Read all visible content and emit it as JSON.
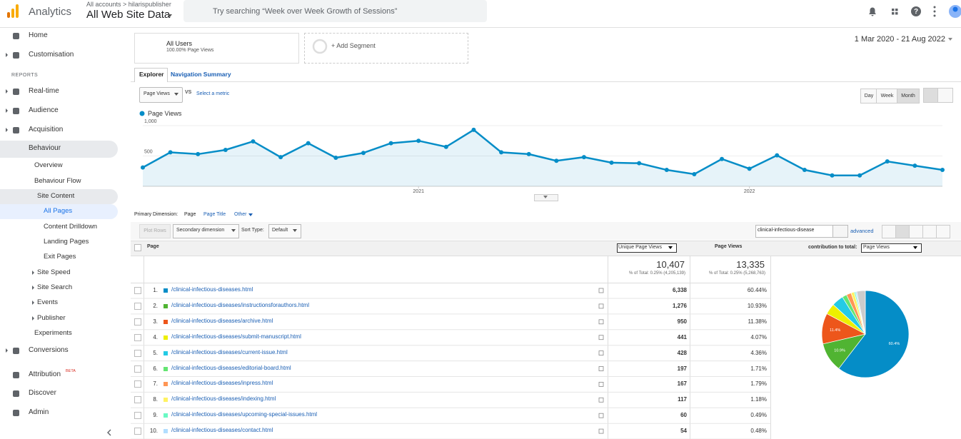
{
  "header": {
    "app": "Analytics",
    "account_path": "All accounts > hilarispublisher",
    "property": "All Web Site Data",
    "search_placeholder": "Try searching “Week over Week Growth of Sessions”"
  },
  "sidebar": {
    "reports_heading": "REPORTS",
    "attribution_badge": "BETA",
    "items": [
      "Home",
      "Customisation",
      "Real-time",
      "Audience",
      "Acquisition",
      "Behaviour",
      "Overview",
      "Behaviour Flow",
      "Site Content",
      "All Pages",
      "Content Drilldown",
      "Landing Pages",
      "Exit Pages",
      "Site Speed",
      "Site Search",
      "Events",
      "Publisher",
      "Experiments",
      "Conversions",
      "Attribution",
      "Discover",
      "Admin"
    ]
  },
  "segments": {
    "all_users": "All Users",
    "all_users_sub": "100.00% Page Views",
    "add": "+ Add Segment"
  },
  "date_range": "1 Mar 2020 - 21 Aug 2022",
  "tabs": [
    "Explorer",
    "Navigation Summary"
  ],
  "metric": {
    "selected": "Page Views",
    "vs": "VS",
    "select": "Select a metric"
  },
  "granularity": [
    "Day",
    "Week",
    "Month"
  ],
  "chart_data": [
    {
      "type": "line",
      "series": [
        {
          "name": "Page Views",
          "color": "#058dc7",
          "values": [
            310,
            560,
            530,
            600,
            740,
            480,
            710,
            470,
            550,
            710,
            750,
            650,
            930,
            560,
            530,
            420,
            480,
            390,
            380,
            270,
            200,
            450,
            290,
            510,
            270,
            180,
            180,
            410,
            340,
            270
          ]
        }
      ],
      "x": [
        null,
        null,
        null,
        null,
        null,
        null,
        null,
        null,
        null,
        null,
        "2021",
        null,
        null,
        null,
        null,
        null,
        null,
        null,
        null,
        null,
        null,
        null,
        "2022",
        null,
        null,
        null,
        null,
        null,
        null,
        null
      ],
      "ylim": [
        0,
        1070
      ],
      "yticks": [
        500,
        {
          "value": 1000,
          "label": "1,000"
        }
      ],
      "grid": true,
      "legend": "top-left"
    },
    {
      "type": "pie",
      "values": [
        60.44,
        10.93,
        11.38,
        4.07,
        4.36,
        1.71,
        1.79,
        1.18,
        0.49,
        0.48,
        3.17
      ],
      "value_labels": [
        "60.4%",
        "10.9%",
        "11.4%",
        null,
        null,
        null,
        null,
        null,
        null,
        null,
        null
      ],
      "colors": [
        "#058dc7",
        "#50b432",
        "#ed561b",
        "#edef00",
        "#24cbe5",
        "#64e572",
        "#ff9655",
        "#fff263",
        "#6af9c4",
        "#b2deff",
        "#cccccc"
      ]
    }
  ],
  "dimensions": {
    "label": "Primary Dimension:",
    "options": [
      "Page",
      "Page Title",
      "Other"
    ]
  },
  "toolbar": {
    "plot_rows": "Plot Rows",
    "secondary": "Secondary dimension",
    "sort_label": "Sort Type:",
    "sort": "Default",
    "filter": "clinical-infectious-disease",
    "advanced": "advanced"
  },
  "table": {
    "headers": [
      "Page",
      "Unique Page Views",
      "Page Views",
      "contribution to total:"
    ],
    "contribution_select": "Page Views",
    "totals": {
      "unique_page_views": "10,407",
      "unique_page_views_note": "% of Total: 0.25% (4,205,139)",
      "page_views": "13,335",
      "page_views_note": "% of Total: 0.25% (5,268,763)"
    },
    "rows": [
      {
        "rank": "1.",
        "page": "/clinical-infectious-diseases.html",
        "unique_page_views": "6,338",
        "page_views": "60.44%"
      },
      {
        "rank": "2.",
        "page": "/clinical-infectious-diseases/instructionsforauthors.html",
        "unique_page_views": "1,276",
        "page_views": "10.93%"
      },
      {
        "rank": "3.",
        "page": "/clinical-infectious-diseases/archive.html",
        "unique_page_views": "950",
        "page_views": "11.38%"
      },
      {
        "rank": "4.",
        "page": "/clinical-infectious-diseases/submit-manuscript.html",
        "unique_page_views": "441",
        "page_views": "4.07%"
      },
      {
        "rank": "5.",
        "page": "/clinical-infectious-diseases/current-issue.html",
        "unique_page_views": "428",
        "page_views": "4.36%"
      },
      {
        "rank": "6.",
        "page": "/clinical-infectious-diseases/editorial-board.html",
        "unique_page_views": "197",
        "page_views": "1.71%"
      },
      {
        "rank": "7.",
        "page": "/clinical-infectious-diseases/inpress.html",
        "unique_page_views": "167",
        "page_views": "1.79%"
      },
      {
        "rank": "8.",
        "page": "/clinical-infectious-diseases/indexing.html",
        "unique_page_views": "117",
        "page_views": "1.18%"
      },
      {
        "rank": "9.",
        "page": "/clinical-infectious-diseases/upcoming-special-issues.html",
        "unique_page_views": "60",
        "page_views": "0.49%"
      },
      {
        "rank": "10.",
        "page": "/clinical-infectious-diseases/contact.html",
        "unique_page_views": "54",
        "page_views": "0.48%"
      }
    ]
  }
}
